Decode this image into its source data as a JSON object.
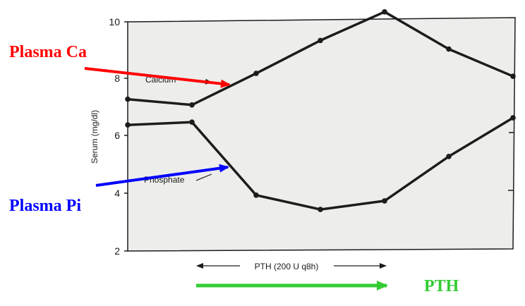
{
  "chart_data": {
    "type": "line",
    "ylabel": "Serum (mg/dl)",
    "ylim": [
      2,
      10
    ],
    "yticks": [
      2,
      4,
      6,
      8,
      10
    ],
    "x": [
      0,
      1,
      2,
      3,
      4,
      5,
      6
    ],
    "series": [
      {
        "name": "Calcium",
        "values": [
          7.3,
          7.1,
          8.2,
          9.35,
          10.35,
          9.05,
          8.1
        ]
      },
      {
        "name": "Phosphate",
        "values": [
          6.4,
          6.5,
          3.95,
          3.45,
          3.75,
          5.3,
          6.65
        ]
      }
    ],
    "annotations": {
      "pth_period": "PTH (200 U q8h)",
      "plasma_ca": "Plasma Ca",
      "plasma_pi": "Plasma Pi",
      "pth": "PTH"
    }
  },
  "colors": {
    "plot_bg": "#ededeb",
    "line": "#1c1c1c",
    "ca_arrow": "#ff0000",
    "pi_arrow": "#0000ff",
    "pth_arrow": "#33cc33"
  }
}
